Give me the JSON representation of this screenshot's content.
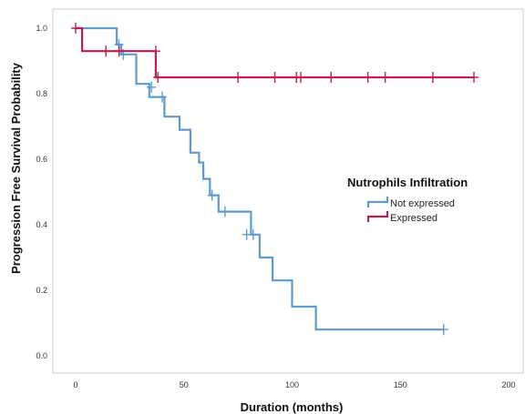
{
  "chart_data": {
    "type": "line",
    "subtype": "kaplan-meier step",
    "title": "",
    "xlabel": "Duration (months)",
    "ylabel": "Progression Free Survival Probability",
    "xlim": [
      0,
      200
    ],
    "ylim": [
      0.0,
      1.0
    ],
    "xticks": [
      "0",
      "50",
      "100",
      "150",
      "200"
    ],
    "yticks": [
      "0.0",
      "0.2",
      "0.4",
      "0.6",
      "0.8",
      "1.0"
    ],
    "grid": false,
    "legend": {
      "title": "Nutrophils Infiltration",
      "placement": "right"
    },
    "series": [
      {
        "name": "Not expressed",
        "color": "#5b9bd5",
        "steps": [
          [
            0,
            1.0
          ],
          [
            19,
            0.95
          ],
          [
            21,
            0.92
          ],
          [
            28,
            0.83
          ],
          [
            34,
            0.79
          ],
          [
            41,
            0.73
          ],
          [
            48,
            0.69
          ],
          [
            53,
            0.62
          ],
          [
            57,
            0.59
          ],
          [
            59,
            0.54
          ],
          [
            62,
            0.49
          ],
          [
            66,
            0.44
          ],
          [
            81,
            0.37
          ],
          [
            85,
            0.3
          ],
          [
            91,
            0.23
          ],
          [
            100,
            0.15
          ],
          [
            111,
            0.08
          ],
          [
            170,
            0.08
          ]
        ],
        "censored": [
          [
            20,
            0.95
          ],
          [
            22,
            0.92
          ],
          [
            35,
            0.82
          ],
          [
            40,
            0.79
          ],
          [
            63,
            0.49
          ],
          [
            69,
            0.44
          ],
          [
            79,
            0.37
          ],
          [
            82,
            0.37
          ],
          [
            170,
            0.08
          ]
        ]
      },
      {
        "name": "Expressed",
        "color": "#be1e4b",
        "steps": [
          [
            0,
            1.0
          ],
          [
            3,
            0.93
          ],
          [
            37,
            0.85
          ],
          [
            184,
            0.85
          ]
        ],
        "censored": [
          [
            0,
            1.0
          ],
          [
            14,
            0.93
          ],
          [
            20,
            0.93
          ],
          [
            37,
            0.93
          ],
          [
            38,
            0.85
          ],
          [
            75,
            0.85
          ],
          [
            92,
            0.85
          ],
          [
            102,
            0.85
          ],
          [
            104,
            0.85
          ],
          [
            118,
            0.85
          ],
          [
            135,
            0.85
          ],
          [
            143,
            0.85
          ],
          [
            165,
            0.85
          ],
          [
            184,
            0.85
          ]
        ]
      }
    ]
  }
}
